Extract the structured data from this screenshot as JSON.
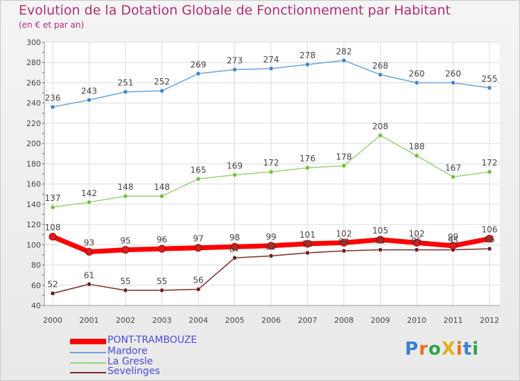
{
  "header": {
    "title": "Evolution de la Dotation Globale de Fonctionnement par Habitant",
    "subtitle": "(en € et par an)"
  },
  "brand": "ProXiti",
  "chart_data": {
    "type": "line",
    "categories": [
      "2000",
      "2001",
      "2002",
      "2003",
      "2004",
      "2005",
      "2006",
      "2007",
      "2008",
      "2009",
      "2010",
      "2011",
      "2012"
    ],
    "ylim": [
      40,
      300
    ],
    "yticks": [
      40,
      60,
      80,
      100,
      120,
      140,
      160,
      180,
      200,
      220,
      240,
      260,
      280,
      300
    ],
    "grid": true,
    "legend_position": "bottom-left",
    "series": [
      {
        "name": "PONT-TRAMBOUZE",
        "color": "#ff0000",
        "marker": "#d81e1e",
        "values": [
          108,
          93,
          95,
          96,
          97,
          98,
          99,
          101,
          102,
          105,
          102,
          99,
          106
        ],
        "emphasis": true
      },
      {
        "name": "Mardore",
        "color": "#6aa3d8",
        "marker": "#3f86c8",
        "values": [
          236,
          243,
          251,
          252,
          269,
          273,
          274,
          278,
          282,
          268,
          260,
          260,
          255
        ]
      },
      {
        "name": "La Gresle",
        "color": "#9ad27a",
        "marker": "#6cc23a",
        "values": [
          137,
          142,
          148,
          148,
          165,
          169,
          172,
          176,
          178,
          208,
          188,
          167,
          172
        ]
      },
      {
        "name": "Sevelinges",
        "color": "#7a2a2a",
        "marker": "#6a1f1f",
        "values": [
          52,
          61,
          55,
          55,
          56,
          87,
          89,
          92,
          94,
          95,
          95,
          95,
          96
        ]
      }
    ]
  }
}
